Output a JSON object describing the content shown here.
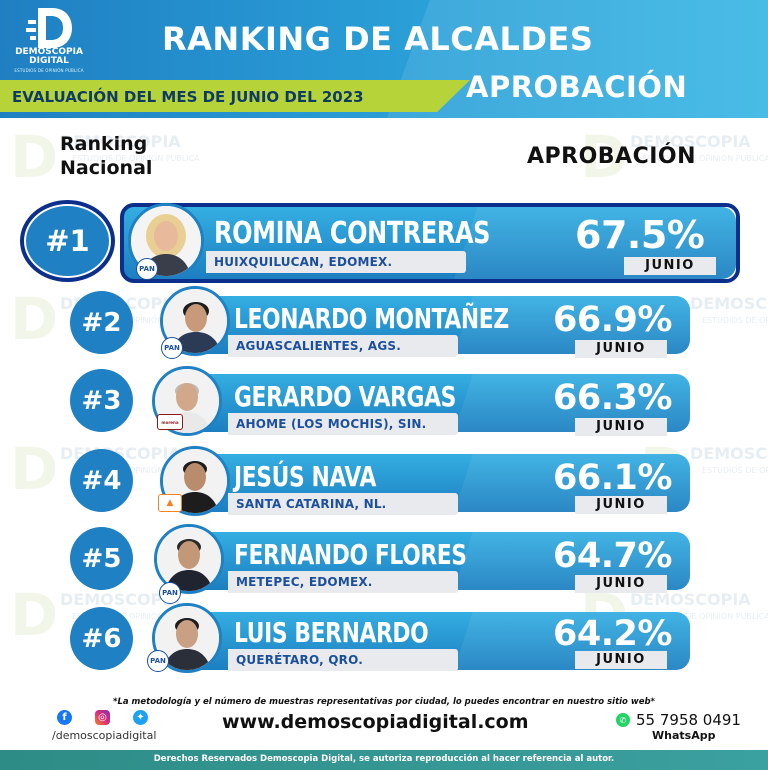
{
  "brand": {
    "name_line1": "DEMOSCOPIA",
    "name_line2": "DIGITAL",
    "tagline": "ESTUDIOS DE OPINIÓN PÚBLICA",
    "accent": "#1f80c3",
    "highlight": "#b6d43a",
    "dark_blue": "#0b2f8a"
  },
  "header": {
    "title": "RANKING DE ALCALDES",
    "period": "EVALUACIÓN DEL MES DE JUNIO DEL 2023",
    "subtitle": "APROBACIÓN"
  },
  "columns": {
    "rank_line1": "Ranking",
    "rank_line2": "Nacional",
    "approval": "APROBACIÓN"
  },
  "rankings": [
    {
      "rank": "#1",
      "name": "ROMINA CONTRERAS",
      "location": "HUIXQUILUCAN, EDOMEX.",
      "approval": "67.5%",
      "month": "JUNIO",
      "party": "PAN",
      "party_icon": "pan-logo-icon"
    },
    {
      "rank": "#2",
      "name": "LEONARDO MONTAÑEZ",
      "location": "AGUASCALIENTES, AGS.",
      "approval": "66.9%",
      "month": "JUNIO",
      "party": "PAN",
      "party_icon": "pan-logo-icon"
    },
    {
      "rank": "#3",
      "name": "GERARDO VARGAS",
      "location": "AHOME (LOS MOCHIS), SIN.",
      "approval": "66.3%",
      "month": "JUNIO",
      "party": "morena",
      "party_icon": "morena-logo-icon"
    },
    {
      "rank": "#4",
      "name": "JESÚS NAVA",
      "location": "SANTA CATARINA, NL.",
      "approval": "66.1%",
      "month": "JUNIO",
      "party": "",
      "party_icon": "movimiento-ciudadano-logo-icon"
    },
    {
      "rank": "#5",
      "name": "FERNANDO FLORES",
      "location": "METEPEC, EDOMEX.",
      "approval": "64.7%",
      "month": "JUNIO",
      "party": "PAN",
      "party_icon": "pan-logo-icon"
    },
    {
      "rank": "#6",
      "name": "LUIS BERNARDO",
      "location": "QUERÉTARO, QRO.",
      "approval": "64.2%",
      "month": "JUNIO",
      "party": "PAN",
      "party_icon": "pan-logo-icon"
    }
  ],
  "footer": {
    "note": "*La metodología y el número de muestras representativas por ciudad, lo puedes encontrar en nuestro sitio web*",
    "social_handle": "/demoscopiadigital",
    "website": "www.demoscopiadigital.com",
    "phone": "55 7958 0491",
    "whatsapp_label": "WhatsApp",
    "copyright": "Derechos Reservados Demoscopia Digital, se autoriza reproducción al hacer referencia al autor.",
    "icons": [
      "facebook-icon",
      "instagram-icon",
      "twitter-icon",
      "whatsapp-icon"
    ]
  }
}
